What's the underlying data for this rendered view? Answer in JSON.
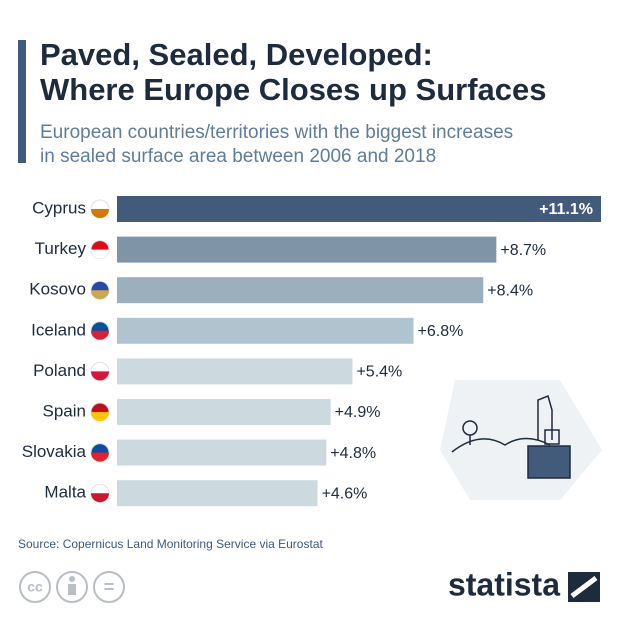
{
  "chart_data": {
    "type": "bar",
    "title": [
      "Paved, Sealed, Developed:",
      "Where Europe Closes up Surfaces"
    ],
    "subtitle": [
      "European countries/territories with the biggest increases",
      "in sealed surface area between 2006 and 2018"
    ],
    "categories": [
      "Cyprus",
      "Turkey",
      "Kosovo",
      "Iceland",
      "Poland",
      "Spain",
      "Slovakia",
      "Malta"
    ],
    "values": [
      11.1,
      8.7,
      8.4,
      6.8,
      5.4,
      4.9,
      4.8,
      4.6
    ],
    "value_labels": [
      "+11.1%",
      "+8.7%",
      "+8.4%",
      "+6.8%",
      "+5.4%",
      "+4.9%",
      "+4.8%",
      "+4.6%"
    ],
    "colors": [
      "#435b7a",
      "#7f95a7",
      "#9bafbc",
      "#afc4cf",
      "#ccdae0",
      "#ccdae0",
      "#ccdae0",
      "#ccdae0"
    ],
    "source": "Source: Copernicus Land Monitoring Service via Eurostat",
    "license_icons": [
      "cc",
      "="
    ],
    "brand": "statista"
  }
}
